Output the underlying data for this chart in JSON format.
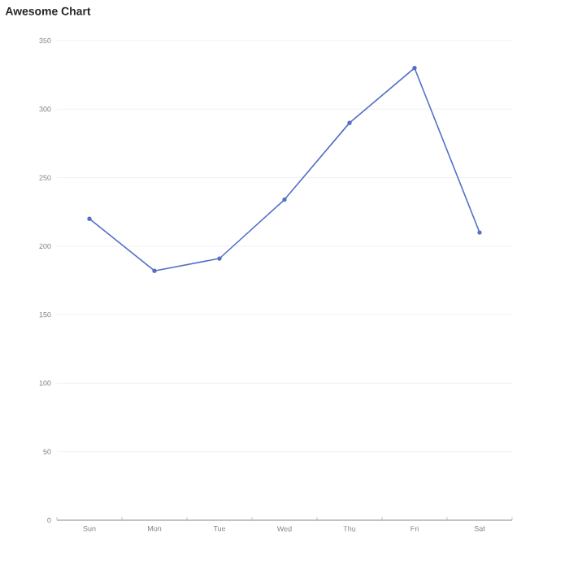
{
  "chart_data": {
    "type": "line",
    "title": "Awesome Chart",
    "categories": [
      "Sun",
      "Mon",
      "Tue",
      "Wed",
      "Thu",
      "Fri",
      "Sat"
    ],
    "series": [
      {
        "color": "#5470c6",
        "values": [
          220,
          182,
          191,
          234,
          290,
          330,
          210
        ]
      }
    ],
    "ylim": [
      0,
      350
    ],
    "yticks": [
      0,
      50,
      100,
      150,
      200,
      250,
      300,
      350
    ],
    "grid": "y",
    "marker": "circle",
    "line_style": "solid"
  }
}
